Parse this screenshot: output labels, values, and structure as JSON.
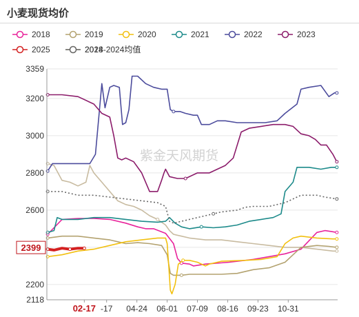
{
  "title": "小麦现货均价",
  "watermark": "紫金天风期货",
  "chart_data": {
    "type": "line",
    "title": "小麦现货均价",
    "x_unit": "day of year",
    "ylim": [
      2118,
      3359
    ],
    "y_ticks": [
      2118,
      2200,
      2400,
      2600,
      2800,
      3000,
      3200,
      3359
    ],
    "x_ticks": [
      {
        "label": "02-17",
        "doy": 48,
        "highlight": true
      },
      {
        "label": "-17",
        "doy": 76
      },
      {
        "label": "04-24",
        "doy": 114
      },
      {
        "label": "06-01",
        "doy": 152
      },
      {
        "label": "07-09",
        "doy": 190
      },
      {
        "label": "08-16",
        "doy": 228
      },
      {
        "label": "09-23",
        "doy": 266
      },
      {
        "label": "10-31",
        "doy": 304
      }
    ],
    "highlight_value": {
      "label": "2399",
      "value": 2399
    },
    "legend_position": "top",
    "series": [
      {
        "name": "2018",
        "color": "#e8229a",
        "dash": false,
        "points": [
          [
            2,
            2470
          ],
          [
            20,
            2550
          ],
          [
            40,
            2555
          ],
          [
            60,
            2555
          ],
          [
            80,
            2550
          ],
          [
            100,
            2530
          ],
          [
            115,
            2510
          ],
          [
            125,
            2500
          ],
          [
            135,
            2500
          ],
          [
            150,
            2475
          ],
          [
            160,
            2420
          ],
          [
            165,
            2340
          ],
          [
            170,
            2315
          ],
          [
            180,
            2310
          ],
          [
            185,
            2300
          ],
          [
            200,
            2310
          ],
          [
            230,
            2320
          ],
          [
            260,
            2335
          ],
          [
            280,
            2350
          ],
          [
            300,
            2365
          ],
          [
            320,
            2390
          ],
          [
            340,
            2480
          ],
          [
            350,
            2490
          ],
          [
            358,
            2485
          ],
          [
            365,
            2480
          ]
        ]
      },
      {
        "name": "2019",
        "color": "#b3a26f",
        "dash": false,
        "points": [
          [
            2,
            2450
          ],
          [
            20,
            2460
          ],
          [
            40,
            2460
          ],
          [
            60,
            2450
          ],
          [
            80,
            2440
          ],
          [
            90,
            2430
          ],
          [
            100,
            2420
          ],
          [
            115,
            2425
          ],
          [
            130,
            2420
          ],
          [
            145,
            2410
          ],
          [
            152,
            2360
          ],
          [
            156,
            2260
          ],
          [
            160,
            2250
          ],
          [
            170,
            2250
          ],
          [
            180,
            2255
          ],
          [
            190,
            2255
          ],
          [
            220,
            2255
          ],
          [
            240,
            2260
          ],
          [
            260,
            2280
          ],
          [
            270,
            2285
          ],
          [
            280,
            2290
          ],
          [
            300,
            2320
          ],
          [
            310,
            2360
          ],
          [
            320,
            2400
          ],
          [
            340,
            2410
          ],
          [
            355,
            2405
          ],
          [
            365,
            2400
          ]
        ]
      },
      {
        "name": "2020",
        "color": "#f2c00f",
        "dash": false,
        "points": [
          [
            2,
            2350
          ],
          [
            20,
            2360
          ],
          [
            40,
            2380
          ],
          [
            60,
            2390
          ],
          [
            80,
            2410
          ],
          [
            100,
            2430
          ],
          [
            120,
            2440
          ],
          [
            140,
            2450
          ],
          [
            150,
            2450
          ],
          [
            152,
            2420
          ],
          [
            154,
            2300
          ],
          [
            156,
            2170
          ],
          [
            158,
            2150
          ],
          [
            162,
            2200
          ],
          [
            166,
            2310
          ],
          [
            172,
            2330
          ],
          [
            180,
            2330
          ],
          [
            190,
            2320
          ],
          [
            200,
            2300
          ],
          [
            205,
            2310
          ],
          [
            215,
            2320
          ],
          [
            220,
            2325
          ],
          [
            250,
            2330
          ],
          [
            270,
            2335
          ],
          [
            290,
            2350
          ],
          [
            300,
            2420
          ],
          [
            310,
            2450
          ],
          [
            320,
            2460
          ],
          [
            340,
            2450
          ],
          [
            360,
            2445
          ],
          [
            365,
            2445
          ]
        ]
      },
      {
        "name": "2021",
        "color": "#1c8a8a",
        "dash": false,
        "points": [
          [
            2,
            2480
          ],
          [
            10,
            2490
          ],
          [
            14,
            2560
          ],
          [
            20,
            2550
          ],
          [
            40,
            2550
          ],
          [
            60,
            2560
          ],
          [
            80,
            2560
          ],
          [
            100,
            2550
          ],
          [
            120,
            2540
          ],
          [
            140,
            2535
          ],
          [
            150,
            2540
          ],
          [
            155,
            2560
          ],
          [
            162,
            2530
          ],
          [
            170,
            2510
          ],
          [
            180,
            2500
          ],
          [
            195,
            2510
          ],
          [
            210,
            2505
          ],
          [
            225,
            2510
          ],
          [
            240,
            2520
          ],
          [
            255,
            2540
          ],
          [
            270,
            2550
          ],
          [
            285,
            2560
          ],
          [
            295,
            2580
          ],
          [
            300,
            2700
          ],
          [
            310,
            2750
          ],
          [
            315,
            2830
          ],
          [
            330,
            2830
          ],
          [
            345,
            2820
          ],
          [
            358,
            2830
          ],
          [
            365,
            2830
          ]
        ]
      },
      {
        "name": "2022",
        "color": "#4b4b9c",
        "dash": false,
        "points": [
          [
            2,
            2810
          ],
          [
            8,
            2850
          ],
          [
            20,
            2850
          ],
          [
            40,
            2850
          ],
          [
            55,
            2850
          ],
          [
            62,
            2900
          ],
          [
            70,
            3280
          ],
          [
            74,
            3150
          ],
          [
            80,
            3260
          ],
          [
            85,
            3270
          ],
          [
            92,
            3260
          ],
          [
            96,
            3060
          ],
          [
            100,
            3070
          ],
          [
            104,
            3140
          ],
          [
            108,
            3320
          ],
          [
            115,
            3320
          ],
          [
            125,
            3280
          ],
          [
            135,
            3260
          ],
          [
            145,
            3250
          ],
          [
            152,
            3250
          ],
          [
            156,
            3140
          ],
          [
            160,
            3130
          ],
          [
            168,
            3130
          ],
          [
            175,
            3120
          ],
          [
            185,
            3110
          ],
          [
            190,
            3110
          ],
          [
            195,
            3060
          ],
          [
            205,
            3060
          ],
          [
            215,
            3080
          ],
          [
            225,
            3080
          ],
          [
            240,
            3070
          ],
          [
            255,
            3070
          ],
          [
            275,
            3070
          ],
          [
            290,
            3080
          ],
          [
            300,
            3120
          ],
          [
            315,
            3170
          ],
          [
            320,
            3250
          ],
          [
            330,
            3260
          ],
          [
            345,
            3270
          ],
          [
            355,
            3210
          ],
          [
            362,
            3230
          ],
          [
            365,
            3230
          ]
        ]
      },
      {
        "name": "2023",
        "color": "#8b1b6a",
        "dash": false,
        "points": [
          [
            2,
            3220
          ],
          [
            20,
            3220
          ],
          [
            40,
            3210
          ],
          [
            60,
            3170
          ],
          [
            70,
            3120
          ],
          [
            80,
            3100
          ],
          [
            85,
            3000
          ],
          [
            90,
            2880
          ],
          [
            95,
            2870
          ],
          [
            100,
            2880
          ],
          [
            110,
            2860
          ],
          [
            120,
            2800
          ],
          [
            130,
            2700
          ],
          [
            140,
            2700
          ],
          [
            145,
            2760
          ],
          [
            148,
            2800
          ],
          [
            150,
            2820
          ],
          [
            155,
            2780
          ],
          [
            165,
            2770
          ],
          [
            175,
            2770
          ],
          [
            190,
            2800
          ],
          [
            205,
            2800
          ],
          [
            215,
            2820
          ],
          [
            225,
            2840
          ],
          [
            235,
            2880
          ],
          [
            245,
            3020
          ],
          [
            255,
            3040
          ],
          [
            270,
            3050
          ],
          [
            285,
            3060
          ],
          [
            300,
            3060
          ],
          [
            310,
            3050
          ],
          [
            320,
            3010
          ],
          [
            330,
            3000
          ],
          [
            338,
            2980
          ],
          [
            345,
            2950
          ],
          [
            352,
            2950
          ],
          [
            360,
            2900
          ],
          [
            365,
            2860
          ]
        ]
      },
      {
        "name": "2024",
        "color": "#c8bba0",
        "dash": false,
        "points": [
          [
            2,
            2850
          ],
          [
            10,
            2840
          ],
          [
            20,
            2760
          ],
          [
            30,
            2750
          ],
          [
            40,
            2730
          ],
          [
            50,
            2750
          ],
          [
            55,
            2840
          ],
          [
            60,
            2800
          ],
          [
            70,
            2750
          ],
          [
            80,
            2700
          ],
          [
            90,
            2650
          ],
          [
            100,
            2630
          ],
          [
            110,
            2620
          ],
          [
            120,
            2600
          ],
          [
            130,
            2570
          ],
          [
            140,
            2550
          ],
          [
            150,
            2520
          ],
          [
            155,
            2490
          ],
          [
            160,
            2470
          ],
          [
            170,
            2460
          ],
          [
            180,
            2450
          ],
          [
            200,
            2440
          ],
          [
            220,
            2440
          ],
          [
            240,
            2430
          ],
          [
            260,
            2420
          ],
          [
            280,
            2410
          ],
          [
            300,
            2400
          ],
          [
            320,
            2400
          ],
          [
            340,
            2390
          ],
          [
            360,
            2380
          ],
          [
            365,
            2380
          ]
        ]
      },
      {
        "name": "2025",
        "color": "#d42020",
        "dash": false,
        "bold": true,
        "points": [
          [
            2,
            2390
          ],
          [
            10,
            2385
          ],
          [
            20,
            2395
          ],
          [
            30,
            2390
          ],
          [
            40,
            2395
          ],
          [
            48,
            2395
          ]
        ]
      },
      {
        "name": "2018-2024均值",
        "color": "#666666",
        "dash": true,
        "points": [
          [
            2,
            2700
          ],
          [
            20,
            2700
          ],
          [
            40,
            2680
          ],
          [
            60,
            2680
          ],
          [
            80,
            2670
          ],
          [
            100,
            2660
          ],
          [
            120,
            2650
          ],
          [
            140,
            2640
          ],
          [
            150,
            2620
          ],
          [
            155,
            2540
          ],
          [
            160,
            2530
          ],
          [
            170,
            2540
          ],
          [
            180,
            2550
          ],
          [
            190,
            2560
          ],
          [
            200,
            2570
          ],
          [
            210,
            2580
          ],
          [
            220,
            2590
          ],
          [
            230,
            2595
          ],
          [
            240,
            2600
          ],
          [
            250,
            2615
          ],
          [
            260,
            2620
          ],
          [
            270,
            2620
          ],
          [
            280,
            2620
          ],
          [
            290,
            2630
          ],
          [
            300,
            2640
          ],
          [
            310,
            2660
          ],
          [
            320,
            2680
          ],
          [
            330,
            2680
          ],
          [
            340,
            2680
          ],
          [
            350,
            2670
          ],
          [
            365,
            2660
          ]
        ]
      }
    ]
  }
}
